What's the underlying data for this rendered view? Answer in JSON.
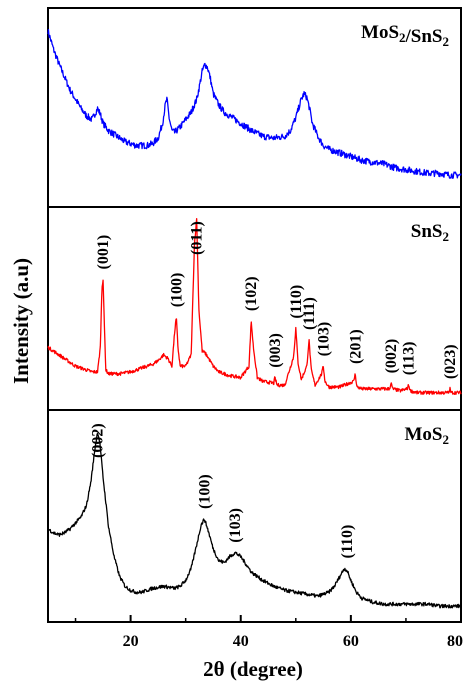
{
  "colors": {
    "frame": "#000000",
    "mos2_sns2": "#0000ff",
    "sns2": "#ff0000",
    "mos2": "#000000"
  },
  "chart_data": {
    "type": "line",
    "xlabel": "2θ (degree)",
    "ylabel": "Intensity (a.u)",
    "xlim": [
      5,
      80
    ],
    "xticks": [
      20,
      40,
      60,
      80
    ],
    "grid": false,
    "panels": [
      {
        "name": "MoS2/SnS2",
        "label_main": "MoS",
        "label_sub1": "2",
        "label_mid": "/SnS",
        "label_sub2": "2",
        "color": "#0000ff",
        "x": [
          5,
          6,
          7,
          8,
          9,
          10,
          11,
          12,
          13,
          13.5,
          14,
          14.5,
          15,
          16,
          17,
          18,
          19,
          20,
          21,
          22,
          23,
          24,
          25,
          25.8,
          26.3,
          26.6,
          27,
          27.5,
          28,
          29,
          30,
          31,
          32,
          32.5,
          33,
          33.5,
          34,
          34.5,
          35,
          36,
          37,
          38,
          39,
          40,
          42,
          44,
          46,
          48,
          49,
          50,
          51,
          51.5,
          52,
          52.5,
          53,
          54,
          55,
          56,
          58,
          60,
          62,
          64,
          66,
          68,
          70,
          72,
          74,
          76,
          78,
          80
        ],
        "y": [
          0.92,
          0.82,
          0.74,
          0.67,
          0.6,
          0.55,
          0.5,
          0.46,
          0.44,
          0.47,
          0.5,
          0.47,
          0.42,
          0.38,
          0.36,
          0.34,
          0.32,
          0.31,
          0.3,
          0.3,
          0.3,
          0.31,
          0.34,
          0.42,
          0.52,
          0.55,
          0.45,
          0.38,
          0.37,
          0.4,
          0.44,
          0.48,
          0.55,
          0.62,
          0.7,
          0.74,
          0.72,
          0.66,
          0.58,
          0.52,
          0.48,
          0.46,
          0.44,
          0.42,
          0.38,
          0.35,
          0.34,
          0.35,
          0.38,
          0.45,
          0.55,
          0.58,
          0.56,
          0.5,
          0.42,
          0.35,
          0.3,
          0.28,
          0.26,
          0.24,
          0.22,
          0.21,
          0.2,
          0.18,
          0.17,
          0.16,
          0.15,
          0.15,
          0.14,
          0.14
        ],
        "peaks": []
      },
      {
        "name": "SnS2",
        "label_main": "SnS",
        "label_sub1": "2",
        "label_mid": "",
        "label_sub2": "",
        "color": "#ff0000",
        "x": [
          5,
          6,
          7,
          8,
          9,
          10,
          11,
          12,
          13,
          14,
          14.5,
          14.8,
          15,
          15.2,
          15.5,
          16,
          18,
          20,
          22,
          24,
          25,
          26,
          26.8,
          27.5,
          28,
          28.3,
          28.6,
          29,
          30,
          31,
          31.6,
          32,
          32.4,
          33,
          33.5,
          34,
          35,
          36,
          38,
          40,
          41.5,
          41.9,
          42.3,
          43,
          44,
          46,
          46.2,
          46.6,
          47,
          48,
          49.6,
          50,
          50.4,
          51,
          52,
          52.4,
          52.8,
          53.5,
          54.7,
          55,
          55.3,
          56,
          58,
          60.5,
          60.8,
          61.1,
          62,
          64,
          67,
          67.3,
          67.6,
          69,
          70.2,
          70.5,
          70.8,
          72,
          74,
          76,
          77.8,
          78,
          78.2,
          80
        ],
        "y": [
          0.3,
          0.28,
          0.26,
          0.24,
          0.22,
          0.2,
          0.19,
          0.18,
          0.17,
          0.17,
          0.3,
          0.62,
          0.66,
          0.45,
          0.18,
          0.16,
          0.16,
          0.17,
          0.19,
          0.21,
          0.23,
          0.26,
          0.24,
          0.2,
          0.38,
          0.46,
          0.3,
          0.2,
          0.2,
          0.26,
          0.85,
          0.98,
          0.5,
          0.28,
          0.27,
          0.25,
          0.2,
          0.17,
          0.15,
          0.14,
          0.2,
          0.44,
          0.3,
          0.14,
          0.12,
          0.11,
          0.14,
          0.1,
          0.1,
          0.1,
          0.25,
          0.4,
          0.22,
          0.13,
          0.2,
          0.34,
          0.18,
          0.1,
          0.16,
          0.2,
          0.12,
          0.09,
          0.09,
          0.12,
          0.16,
          0.09,
          0.08,
          0.08,
          0.08,
          0.11,
          0.08,
          0.07,
          0.08,
          0.1,
          0.07,
          0.06,
          0.06,
          0.06,
          0.06,
          0.08,
          0.06,
          0.06
        ],
        "peaks": [
          {
            "label": "(001)",
            "x": 15.0,
            "y": 0.68
          },
          {
            "label": "(100)",
            "x": 28.3,
            "y": 0.48
          },
          {
            "label": "(011)",
            "x": 32.0,
            "y": 1.0
          },
          {
            "label": "(102)",
            "x": 41.9,
            "y": 0.46
          },
          {
            "label": "(003)",
            "x": 46.2,
            "y": 0.16
          },
          {
            "label": "(110)",
            "x": 50.0,
            "y": 0.42
          },
          {
            "label": "(111)",
            "x": 52.4,
            "y": 0.36
          },
          {
            "label": "(103)",
            "x": 55.0,
            "y": 0.22
          },
          {
            "label": "(201)",
            "x": 60.8,
            "y": 0.18
          },
          {
            "label": "(002)",
            "x": 67.3,
            "y": 0.13
          },
          {
            "label": "(113)",
            "x": 70.5,
            "y": 0.12
          },
          {
            "label": "(023)",
            "x": 78.0,
            "y": 0.1
          }
        ]
      },
      {
        "name": "MoS2",
        "label_main": "MoS",
        "label_sub1": "2",
        "label_mid": "",
        "label_sub2": "",
        "color": "#000000",
        "x": [
          5,
          6,
          7,
          8,
          9,
          10,
          11,
          12,
          12.8,
          13.5,
          14,
          14.4,
          15,
          16,
          17,
          18,
          19,
          20,
          21,
          22,
          24,
          26,
          28,
          29,
          30,
          31,
          32,
          32.8,
          33.4,
          34,
          35,
          36,
          37,
          38,
          39,
          40,
          41,
          42,
          44,
          46,
          48,
          50,
          52,
          54,
          56,
          57,
          58,
          58.8,
          59.3,
          60,
          61,
          62,
          64,
          66,
          68,
          70,
          72,
          74,
          76,
          78,
          80
        ],
        "y": [
          0.44,
          0.42,
          0.41,
          0.42,
          0.44,
          0.47,
          0.5,
          0.56,
          0.68,
          0.84,
          0.93,
          0.88,
          0.7,
          0.45,
          0.3,
          0.2,
          0.15,
          0.13,
          0.12,
          0.12,
          0.14,
          0.15,
          0.14,
          0.15,
          0.18,
          0.24,
          0.36,
          0.46,
          0.49,
          0.44,
          0.34,
          0.28,
          0.27,
          0.3,
          0.32,
          0.3,
          0.26,
          0.22,
          0.18,
          0.15,
          0.13,
          0.12,
          0.11,
          0.1,
          0.12,
          0.15,
          0.2,
          0.24,
          0.23,
          0.18,
          0.12,
          0.09,
          0.07,
          0.06,
          0.06,
          0.06,
          0.06,
          0.06,
          0.05,
          0.05,
          0.05
        ],
        "peaks": [
          {
            "label": "(002)",
            "x": 14.0,
            "y": 0.95
          },
          {
            "label": "(100)",
            "x": 33.4,
            "y": 0.51
          },
          {
            "label": "(103)",
            "x": 39.0,
            "y": 0.34
          },
          {
            "label": "(110)",
            "x": 59.3,
            "y": 0.26
          }
        ]
      }
    ]
  }
}
